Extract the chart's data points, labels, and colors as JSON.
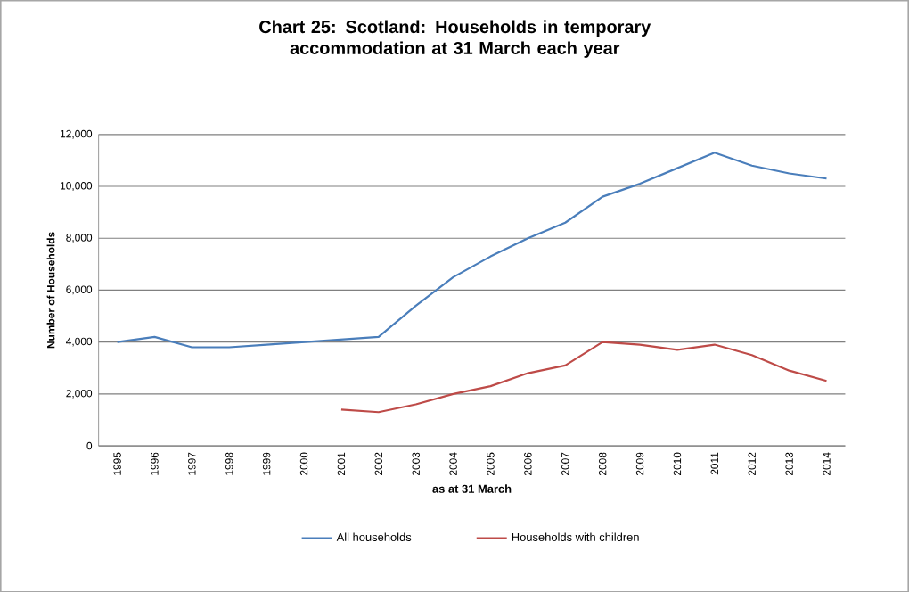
{
  "chart_data": {
    "type": "line",
    "title": "Chart 25: Scotland: Households in temporary accommodation at 31 March each year",
    "xlabel": "as at 31 March",
    "ylabel": "Number of Households",
    "categories": [
      "1995",
      "1996",
      "1997",
      "1998",
      "1999",
      "2000",
      "2001",
      "2002",
      "2003",
      "2004",
      "2005",
      "2006",
      "2007",
      "2008",
      "2009",
      "2010",
      "2011",
      "2012",
      "2013",
      "2014"
    ],
    "series": [
      {
        "name": "All households",
        "color": "#4a7ebb",
        "values": [
          4000,
          4200,
          3800,
          3800,
          3900,
          4000,
          4100,
          4200,
          5400,
          6500,
          7300,
          8000,
          8600,
          9600,
          10100,
          10700,
          11300,
          10800,
          10500,
          10300
        ]
      },
      {
        "name": "Households with children",
        "color": "#be4b48",
        "values": [
          null,
          null,
          null,
          null,
          null,
          null,
          1400,
          1300,
          1600,
          2000,
          2300,
          2800,
          3100,
          4000,
          3900,
          3700,
          3900,
          3500,
          2900,
          2500
        ]
      }
    ],
    "ylim": [
      0,
      12000
    ],
    "yticks": [
      {
        "value": 0,
        "label": "0"
      },
      {
        "value": 2000,
        "label": "2,000"
      },
      {
        "value": 4000,
        "label": "4,000"
      },
      {
        "value": 6000,
        "label": "6,000"
      },
      {
        "value": 8000,
        "label": "8,000"
      },
      {
        "value": 10000,
        "label": "10,000"
      },
      {
        "value": 12000,
        "label": "12,000"
      }
    ],
    "grid": "y",
    "legend": "bottom",
    "marker": "none",
    "line_style": "solid"
  }
}
